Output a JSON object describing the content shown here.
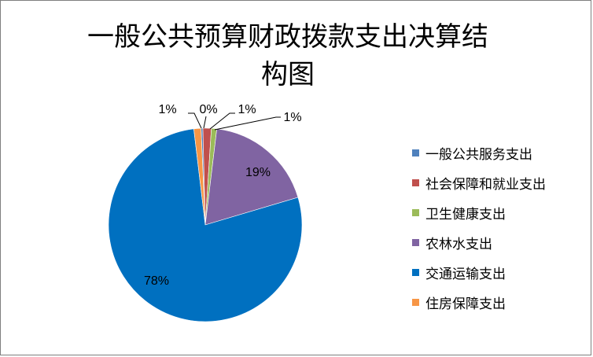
{
  "chart_data": {
    "type": "pie",
    "title": "一般公共预算财政拨款支出决算结构图",
    "title_lines": [
      "一般公共预算财政拨款支出决算结",
      "构图"
    ],
    "legend_position": "right",
    "series": [
      {
        "name": "",
        "slices": [
          {
            "label": "一般公共服务支出",
            "value": 0.3,
            "data_label": "0%",
            "color": "#4f81bd"
          },
          {
            "label": "社会保障和就业支出",
            "value": 1.4,
            "data_label": "1%",
            "color": "#c0504d"
          },
          {
            "label": "卫生健康支出",
            "value": 0.9,
            "data_label": "1%",
            "color": "#9bbb59"
          },
          {
            "label": "农林水支出",
            "value": 18.5,
            "data_label": "19%",
            "color": "#8064a2"
          },
          {
            "label": "交通运输支出",
            "value": 77.7,
            "data_label": "78%",
            "color": "#0070c0"
          },
          {
            "label": "住房保障支出",
            "value": 1.2,
            "data_label": "1%",
            "color": "#f79646"
          }
        ]
      }
    ]
  }
}
